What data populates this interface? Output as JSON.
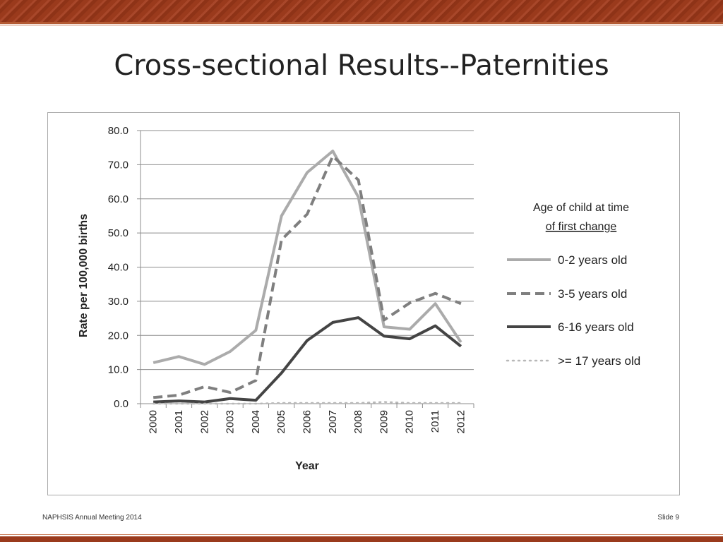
{
  "slide": {
    "title": "Cross-sectional Results--Paternities",
    "footer_left": "NAPHSIS Annual Meeting 2014",
    "footer_right": "Slide 9"
  },
  "chart_data": {
    "type": "line",
    "xlabel": "Year",
    "ylabel": "Rate per 100,000 births",
    "ylim": [
      0,
      80
    ],
    "yticks": [
      "0.0",
      "10.0",
      "20.0",
      "30.0",
      "40.0",
      "50.0",
      "60.0",
      "70.0",
      "80.0"
    ],
    "x": [
      "2000",
      "2001",
      "2002",
      "2003",
      "2004",
      "2005",
      "2006",
      "2007",
      "2008",
      "2009",
      "2010",
      "2011",
      "2012"
    ],
    "grid": "horizontal",
    "legend": {
      "title_line1": "Age of child at time",
      "title_line2": "of first change",
      "position": "right"
    },
    "series": [
      {
        "name": "0-2 years old",
        "style": "solid",
        "color": "#ababab",
        "values": [
          12.0,
          13.8,
          11.5,
          15.3,
          21.5,
          55.0,
          67.7,
          74.0,
          60.5,
          22.5,
          21.8,
          29.3,
          18.0
        ]
      },
      {
        "name": "3-5 years old",
        "style": "dashed",
        "color": "#7f7f7f",
        "values": [
          1.8,
          2.5,
          5.0,
          3.3,
          6.8,
          48.0,
          55.5,
          72.5,
          65.5,
          24.5,
          29.5,
          32.3,
          29.3
        ]
      },
      {
        "name": "6-16 years old",
        "style": "solid",
        "color": "#444444",
        "values": [
          0.5,
          0.8,
          0.5,
          1.5,
          1.0,
          9.0,
          18.5,
          23.8,
          25.2,
          19.8,
          19.0,
          22.8,
          16.8
        ]
      },
      {
        "name": ">= 17 years old",
        "style": "dotted",
        "color": "#b8b8b8",
        "values": [
          0.0,
          0.0,
          0.0,
          0.0,
          0.0,
          0.2,
          0.2,
          0.2,
          0.2,
          0.5,
          0.2,
          0.2,
          0.2
        ]
      }
    ]
  }
}
